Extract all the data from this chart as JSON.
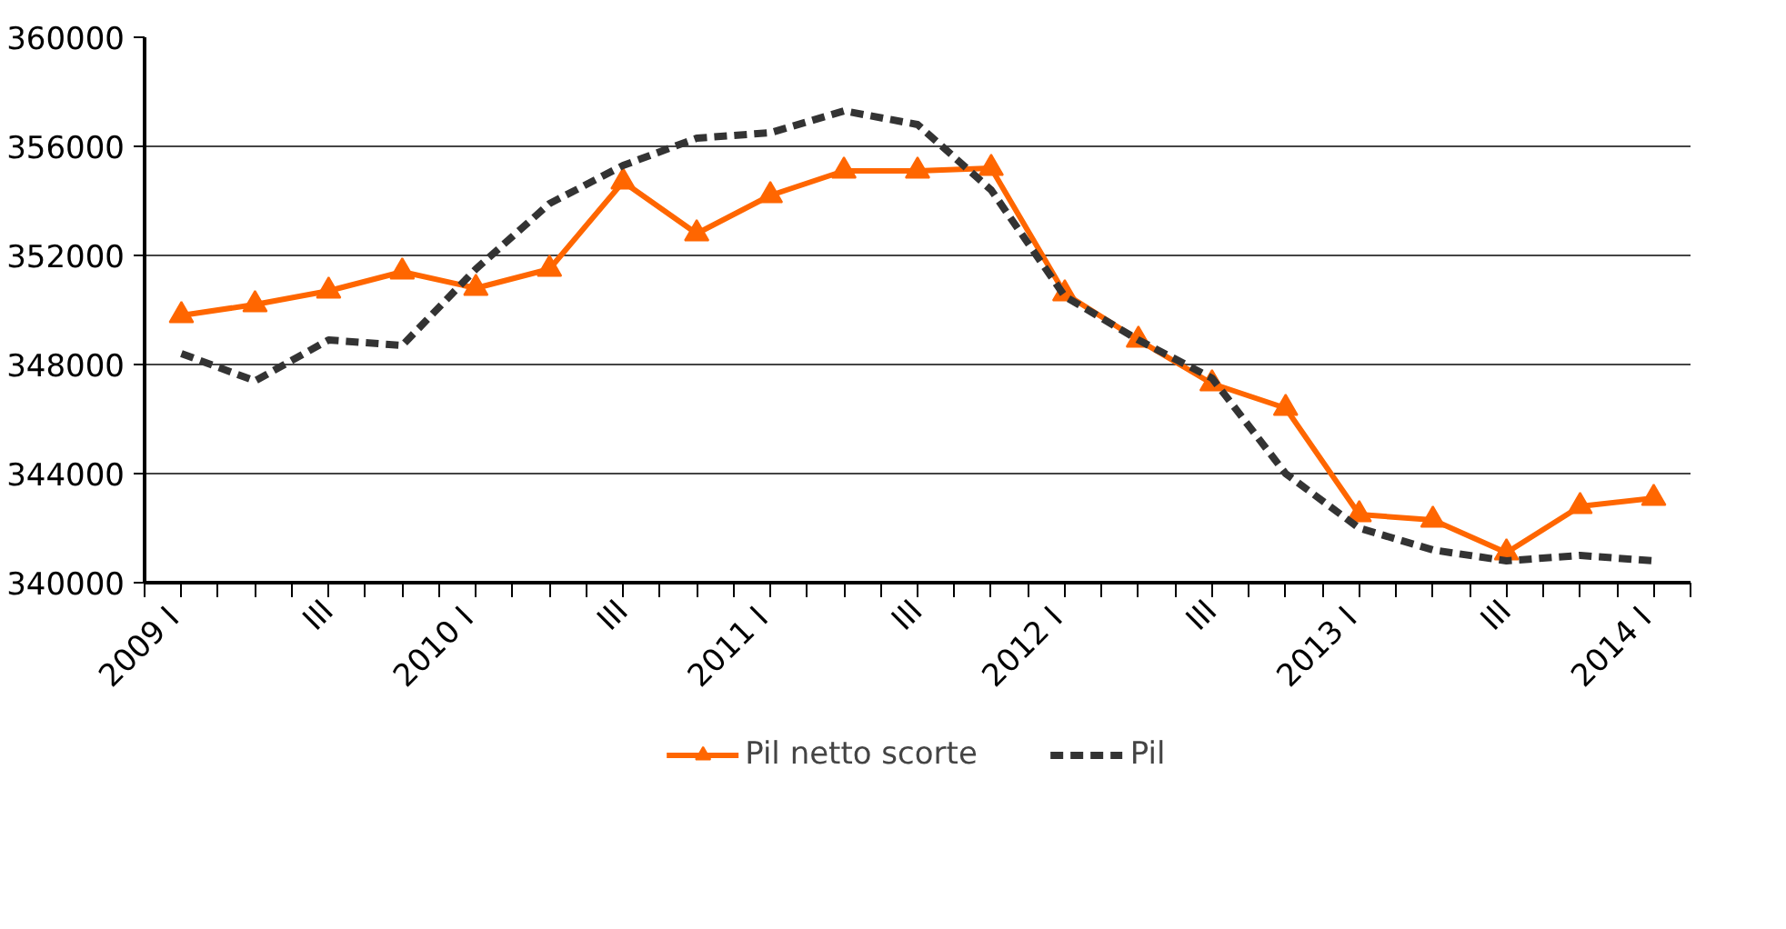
{
  "chart_data": {
    "type": "line",
    "categories": [
      "2009  I",
      null,
      "III",
      null,
      "2010  I",
      null,
      "III",
      null,
      "2011  I",
      null,
      "III",
      null,
      "2012  I",
      null,
      "III",
      null,
      "2013  I",
      null,
      "III",
      null,
      "2014  I"
    ],
    "series": [
      {
        "name": "Pil netto scorte",
        "color": "#ff6600",
        "marker": "triangle",
        "line_style": "solid",
        "values": [
          349800,
          350200,
          350700,
          351400,
          350800,
          351500,
          354700,
          352800,
          354200,
          355100,
          355100,
          355200,
          350600,
          348900,
          347300,
          346400,
          342500,
          342300,
          341100,
          342800,
          343100
        ]
      },
      {
        "name": "Pil",
        "color": "#333333",
        "marker": "none",
        "line_style": "dashed",
        "values": [
          348400,
          347400,
          348900,
          348700,
          351500,
          353900,
          355300,
          356300,
          356500,
          357300,
          356800,
          354400,
          350500,
          348900,
          347500,
          344000,
          342000,
          341200,
          340800,
          341000,
          340800
        ]
      }
    ],
    "ylim": [
      340000,
      360000
    ],
    "yticks": [
      340000,
      344000,
      348000,
      352000,
      356000,
      360000
    ],
    "grid": "y",
    "legend": "bottom"
  }
}
